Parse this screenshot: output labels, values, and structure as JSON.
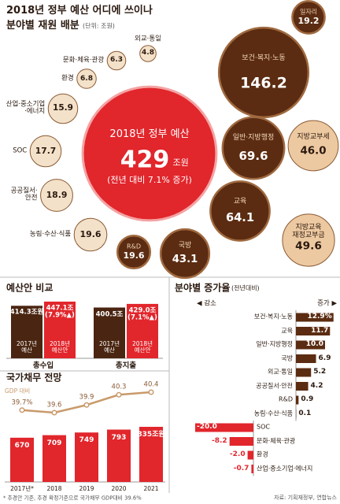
{
  "chart_data": [
    {
      "type": "bubble",
      "title": "2018년 정부 예산 어디에 쓰이나",
      "subtitle": "분야별 재원 배분",
      "unit": "(단위: 조원)",
      "center": {
        "title": "2018년 정부 예산",
        "value": 429,
        "unit": "조원",
        "note": "(전년 대비 7.1% 증가)",
        "color": "#e1262c"
      },
      "categories": [
        "일자리",
        "보건·복지·노동",
        "외교·통일",
        "문화·체육·관광",
        "환경",
        "산업·중소기업\n·에너지",
        "SOC",
        "공공질서·\n안전",
        "농림·수산·식품",
        "R&D",
        "국방",
        "교육",
        "지방교육\n재정교부금",
        "일반·지방행정",
        "지방교부세"
      ],
      "values": [
        19.2,
        146.2,
        4.8,
        6.3,
        6.8,
        15.9,
        17.7,
        18.9,
        19.6,
        19.6,
        43.1,
        64.1,
        49.6,
        69.6,
        46.0
      ],
      "value_labels": [
        "19.2",
        "146.2",
        "4.8",
        "6.3",
        "6.8",
        "15.9",
        "17.7",
        "18.9",
        "19.6",
        "19.6",
        "43.1",
        "64.1",
        "49.6",
        "69.6",
        "46.0"
      ],
      "colors": [
        "#5b2c12",
        "#5b2c12",
        "#f3e1c9",
        "#f3e1c9",
        "#f3e1c9",
        "#f3e1c9",
        "#f3e1c9",
        "#f3e1c9",
        "#f3e1c9",
        "#5b2c12",
        "#5b2c12",
        "#5b2c12",
        "#edc9a1",
        "#5b2c12",
        "#edc9a1"
      ]
    },
    {
      "type": "grouped-bar",
      "title": "예산안 비교",
      "categories": [
        "총수입",
        "총지출"
      ],
      "series": [
        {
          "name": "2017년\n예산",
          "color": "#4a2511",
          "values": [
            414.3,
            400.5
          ],
          "value_labels": [
            "414.3조원",
            "400.5조"
          ]
        },
        {
          "name": "2018년\n예산안",
          "color": "#e1262c",
          "values": [
            447.1,
            429.0
          ],
          "value_labels": [
            "447.1조\n(7.9%▲)",
            "429.0조\n(7.1%▲)"
          ]
        }
      ]
    },
    {
      "type": "bar-line",
      "title": "국가채무 전망",
      "categories": [
        "2017년*",
        "2018",
        "2019",
        "2020",
        "2021"
      ],
      "series": [
        {
          "type": "bar",
          "color": "#e1262c",
          "values": [
            670,
            709,
            749,
            793,
            835
          ],
          "value_labels": [
            "670",
            "709",
            "749",
            "793",
            "835조원"
          ]
        },
        {
          "type": "line",
          "name": "GDP 대비",
          "color": "#c99a6b",
          "values": [
            39.7,
            39.6,
            39.9,
            40.3,
            40.4
          ],
          "value_labels": [
            "39.7%",
            "39.6",
            "39.9",
            "40.3",
            "40.4"
          ]
        }
      ],
      "note": "* 추경안 기준, 추경 확정기준으로 국가채무 GDP대비 39.6%"
    },
    {
      "type": "diverging-bar",
      "title": "분야별 증가율",
      "subtitle": "(전년대비)",
      "decrease_label": "◀ 감소",
      "increase_label": "증가 ▶",
      "categories": [
        "보건·복지·노동",
        "교육",
        "일반·지방행정",
        "국방",
        "외교·통일",
        "공공질서·안전",
        "R&D",
        "농림·수산·식품",
        "SOC",
        "문화·체육·관광",
        "환경",
        "산업·중소기업·에너지"
      ],
      "values": [
        12.9,
        11.7,
        10.0,
        6.9,
        5.2,
        4.2,
        0.9,
        0.1,
        -20.0,
        -8.2,
        -2.0,
        -0.7
      ],
      "value_labels": [
        "12.9%",
        "11.7",
        "10.0",
        "6.9",
        "5.2",
        "4.2",
        "0.9",
        "0.1",
        "-20.0",
        "-8.2",
        "-2.0",
        "-0.7"
      ],
      "positive_color": "#5b2c12",
      "negative_color": "#e1262c"
    }
  ],
  "source": "자료: 기획재정부, 연합뉴스"
}
